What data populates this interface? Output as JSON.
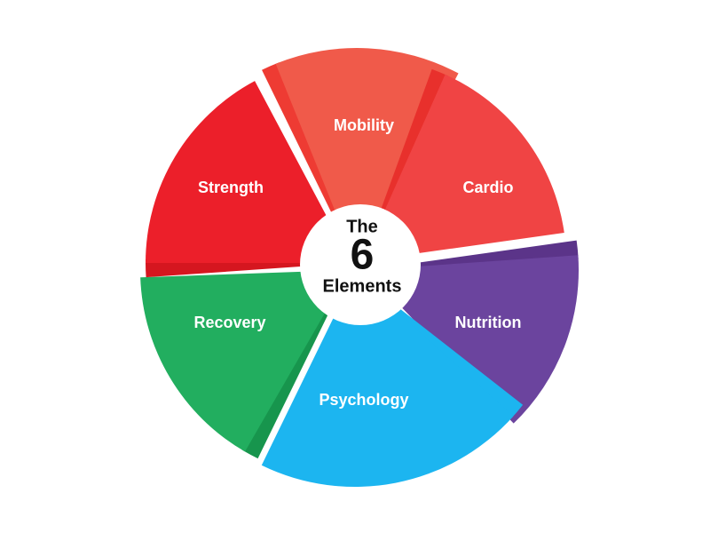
{
  "center": {
    "line1": "The",
    "number": "6",
    "line3": "Elements"
  },
  "segments": [
    {
      "key": "mobility",
      "label": "Mobility",
      "color": "#F05A4A",
      "edge": "#EE3B33"
    },
    {
      "key": "cardio",
      "label": "Cardio",
      "color": "#F04444",
      "edge": "#E8302C"
    },
    {
      "key": "nutrition",
      "label": "Nutrition",
      "color": "#6B449E",
      "edge": "#5B3489"
    },
    {
      "key": "psychology",
      "label": "Psychology",
      "color": "#1CB5F0",
      "edge": "#1CB5F0"
    },
    {
      "key": "recovery",
      "label": "Recovery",
      "color": "#22AE5F",
      "edge": "#17954D"
    },
    {
      "key": "strength",
      "label": "Strength",
      "color": "#EC1F2A",
      "edge": "#D5161F"
    }
  ]
}
